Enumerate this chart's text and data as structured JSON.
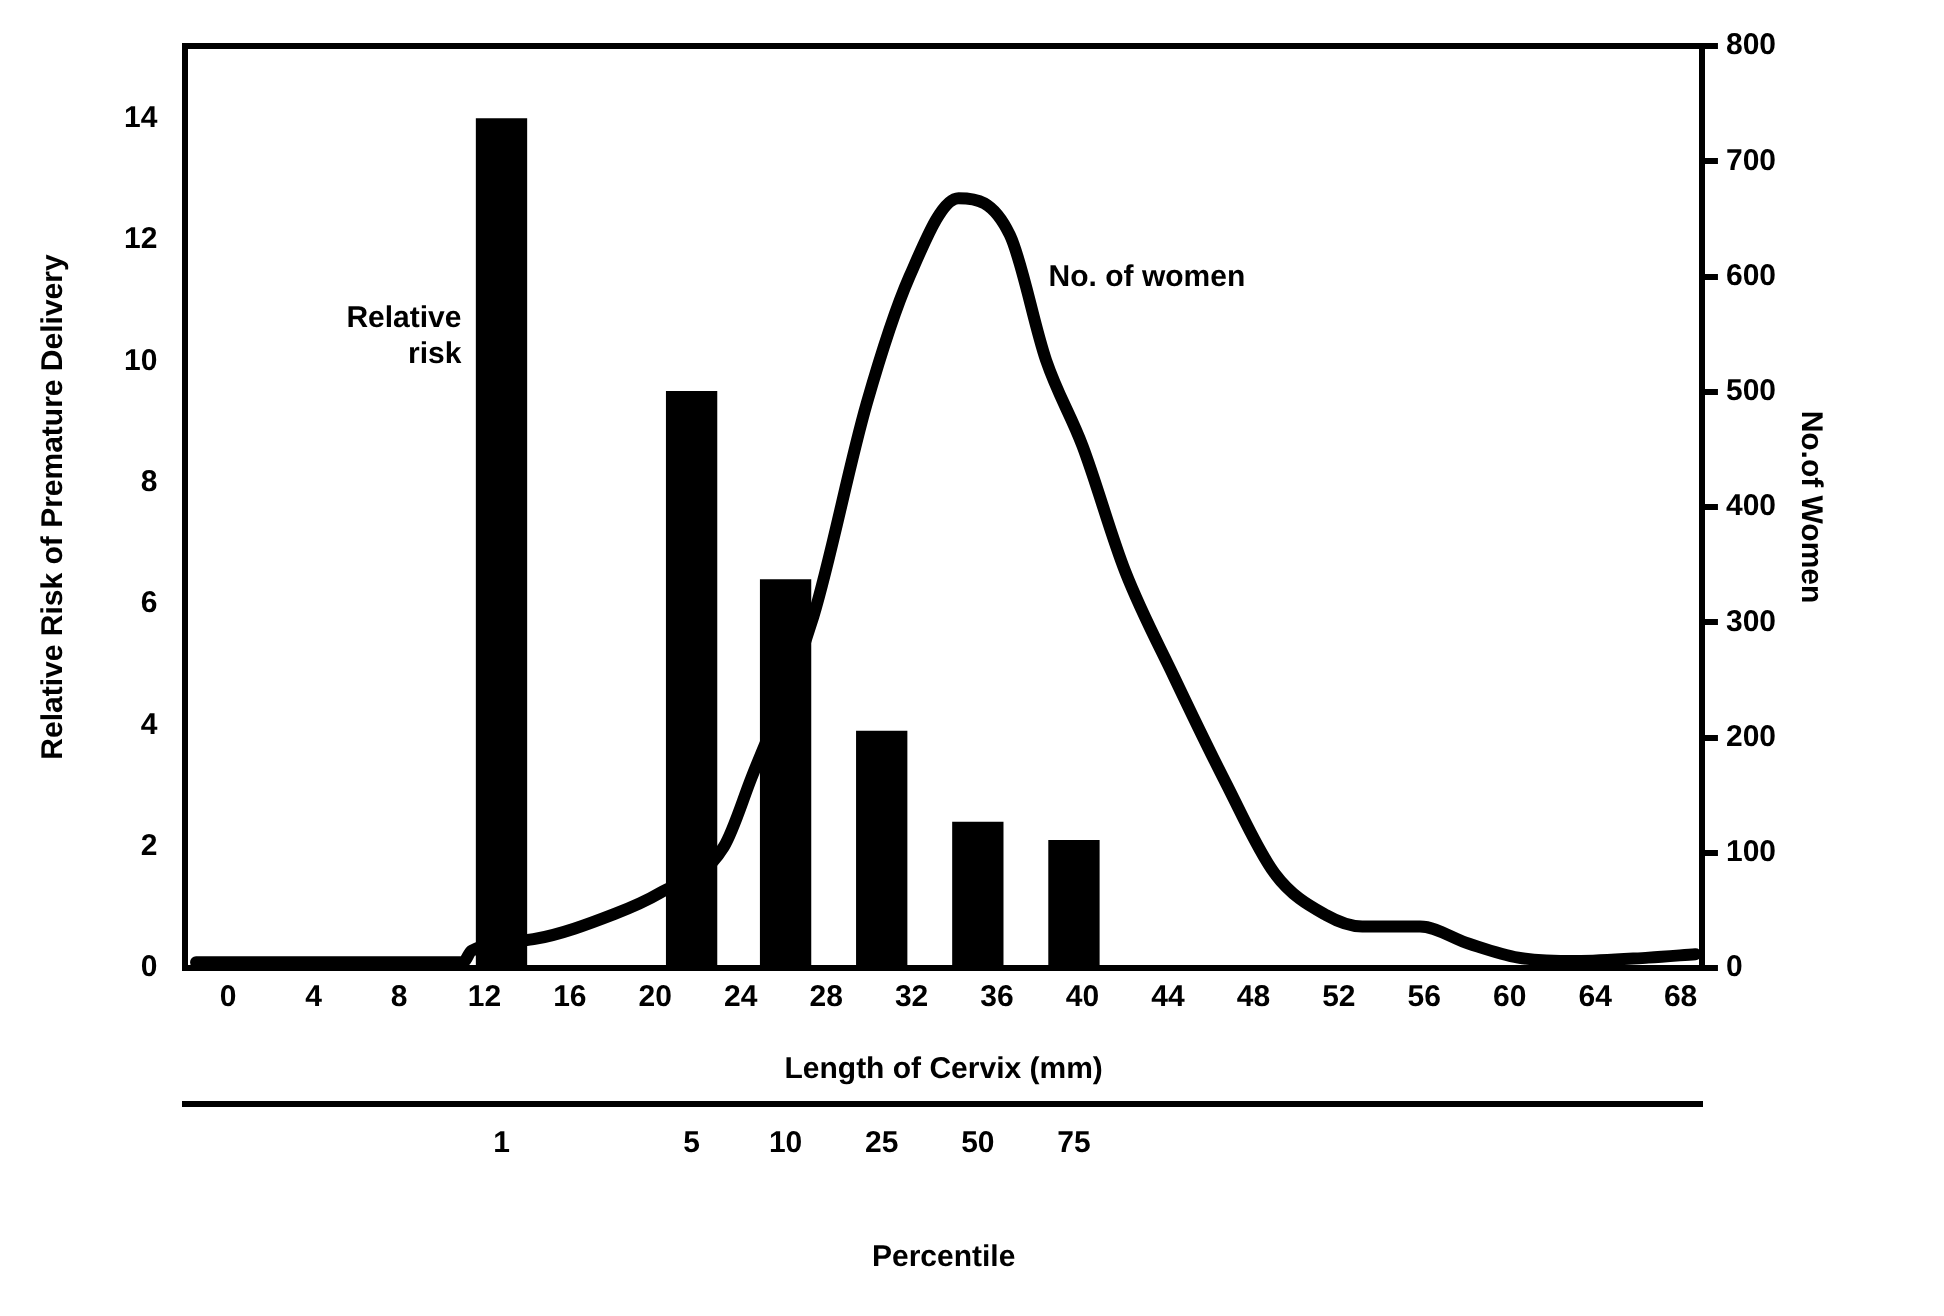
{
  "chart_data": {
    "type": "bar",
    "xlabel": "Length of Cervix (mm)",
    "ylabel": "Relative Risk of Premature Delivery",
    "y2label": "No.of Women",
    "x2label": "Percentile",
    "xlim": [
      -2,
      69
    ],
    "xticks": [
      0,
      4,
      8,
      12,
      16,
      20,
      24,
      28,
      32,
      36,
      40,
      44,
      48,
      52,
      56,
      60,
      64,
      68
    ],
    "annotations": [
      "1",
      "5",
      "10",
      "25",
      "50",
      "75"
    ],
    "ylim": [
      0,
      15.2
    ],
    "yticks": [
      0,
      2,
      4,
      6,
      8,
      10,
      12,
      14
    ],
    "y2lim": [
      0,
      800
    ],
    "y2ticks": [
      0,
      100,
      200,
      300,
      400,
      500,
      600,
      700,
      800
    ],
    "grid": false,
    "legend": false,
    "series": [
      {
        "name": "Relative risk",
        "color": "#000000",
        "x": [
          12.8,
          21.7,
          26.1,
          30.6,
          35.1,
          39.6
        ],
        "values": [
          14.0,
          9.5,
          6.4,
          3.9,
          2.4,
          2.1
        ]
      },
      {
        "type": "line",
        "name": "No. of women",
        "color": "#000000",
        "axis": "y2",
        "marker": "none",
        "line_style": "solid",
        "x": [
          -1.5,
          5,
          11,
          11.4,
          14.3,
          18.1,
          20.2,
          23.2,
          24.5,
          27.4,
          29.9,
          31.9,
          34.2,
          36.6,
          38.3,
          40.0,
          42.0,
          44.3,
          46.7,
          49.0,
          51.4,
          53.1,
          55.8,
          58.1,
          60.4,
          63.1,
          66.5,
          68.7
        ],
        "values": [
          5,
          5,
          5,
          15,
          25,
          47,
          65,
          105,
          165,
          305,
          490,
          600,
          668,
          636,
          527,
          453,
          344,
          252,
          161,
          82,
          46,
          36,
          36,
          21,
          9,
          6,
          9,
          12
        ]
      }
    ]
  }
}
